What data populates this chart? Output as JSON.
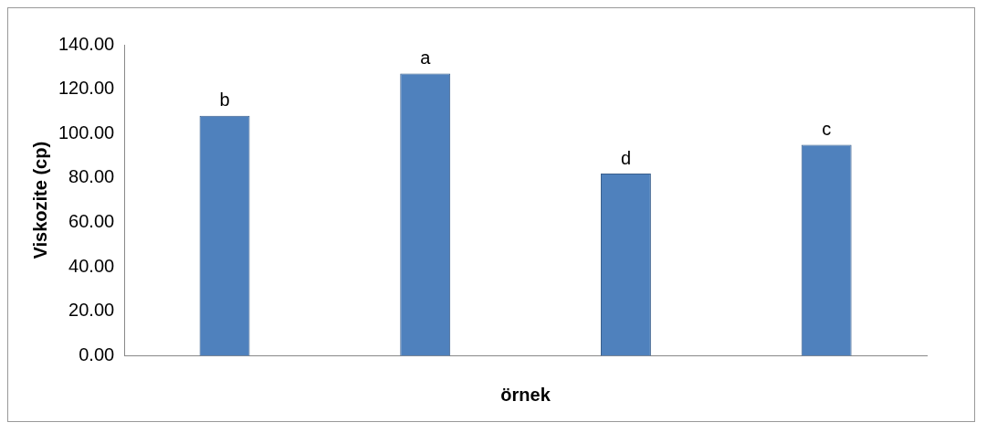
{
  "chart_data": {
    "type": "bar",
    "xlabel": "örnek",
    "ylabel": "Viskozite (cp)",
    "categories": [
      null,
      null,
      null,
      null
    ],
    "values": [
      108,
      127,
      82,
      95
    ],
    "value_labels": [
      "b",
      "a",
      "d",
      "c"
    ],
    "color": "#4f81bd",
    "ylim": [
      0,
      140
    ],
    "yticks": [
      {
        "value": 0,
        "label": "0.00"
      },
      {
        "value": 20,
        "label": "20.00"
      },
      {
        "value": 40,
        "label": "40.00"
      },
      {
        "value": 60,
        "label": "60.00"
      },
      {
        "value": 80,
        "label": "80.00"
      },
      {
        "value": 100,
        "label": "100.00"
      },
      {
        "value": 120,
        "label": "120.00"
      },
      {
        "value": 140,
        "label": "140.00"
      }
    ],
    "grid": false,
    "legend": false
  }
}
